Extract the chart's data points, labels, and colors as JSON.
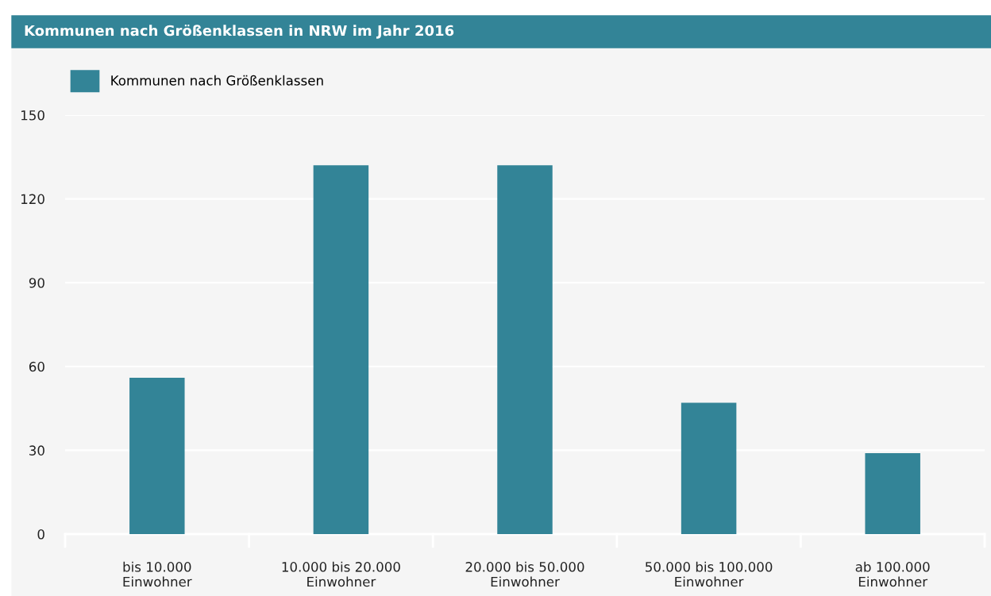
{
  "chart_data": {
    "type": "bar",
    "title": "Kommunen nach Größenklassen in NRW im Jahr 2016",
    "categories": [
      "bis 10.000\nEinwohner",
      "10.000 bis 20.000\nEinwohner",
      "20.000 bis 50.000\nEinwohner",
      "50.000 bis 100.000\nEinwohner",
      "ab 100.000\nEinwohner"
    ],
    "series": [
      {
        "name": "Kommunen nach Größenklassen",
        "color": "#338497",
        "values": [
          56,
          132,
          132,
          47,
          29
        ]
      }
    ],
    "ylim": [
      0,
      150
    ],
    "yticks": [
      0,
      30,
      60,
      90,
      120,
      150
    ],
    "grid": "y",
    "legend": "top left"
  }
}
